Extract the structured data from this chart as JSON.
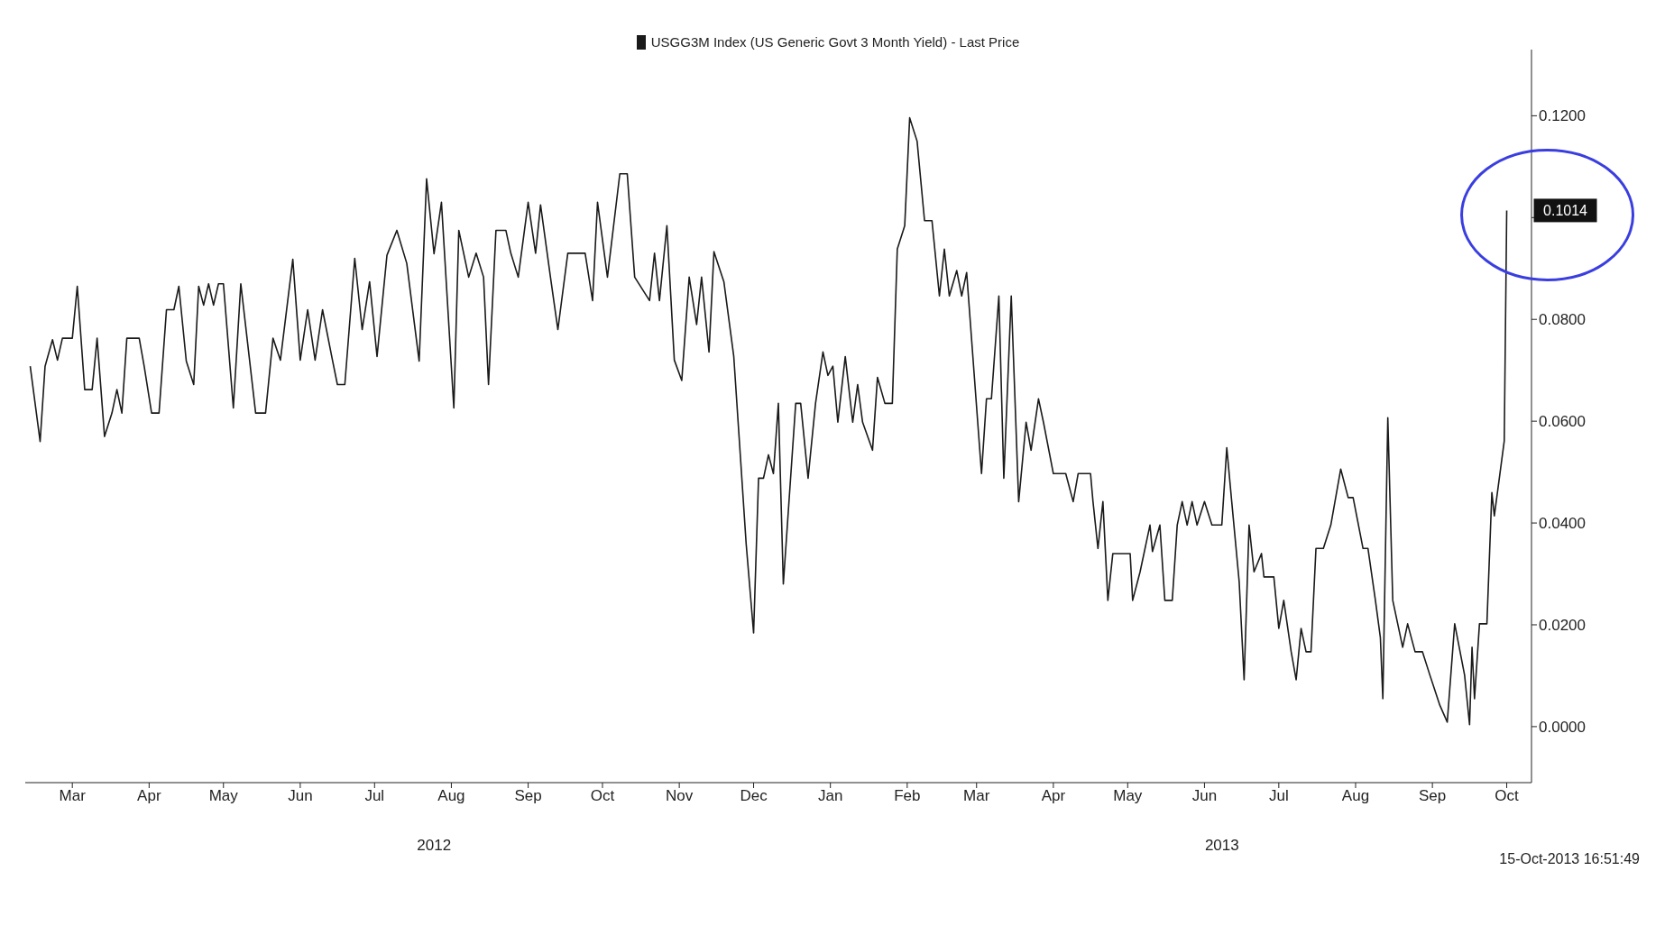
{
  "chart_data": {
    "type": "line",
    "legend": "top",
    "grid": false,
    "marker": "none",
    "line_style": "solid",
    "series": [
      {
        "name": "USGG3M Index (US Generic Govt 3 Month Yield) - Last Price",
        "color": "#1a1a1a",
        "x": [
          "2012-02-27",
          "2012-03-02",
          "2012-03-04",
          "2012-03-07",
          "2012-03-09",
          "2012-03-11",
          "2012-03-15",
          "2012-03-17",
          "2012-03-20",
          "2012-03-23",
          "2012-03-25",
          "2012-03-28",
          "2012-03-31",
          "2012-04-02",
          "2012-04-04",
          "2012-04-06",
          "2012-04-11",
          "2012-04-13",
          "2012-04-16",
          "2012-04-19",
          "2012-04-22",
          "2012-04-25",
          "2012-04-27",
          "2012-04-30",
          "2012-05-03",
          "2012-05-05",
          "2012-05-07",
          "2012-05-09",
          "2012-05-11",
          "2012-05-13",
          "2012-05-15",
          "2012-05-19",
          "2012-05-22",
          "2012-05-28",
          "2012-06-01",
          "2012-06-04",
          "2012-06-07",
          "2012-06-12",
          "2012-06-15",
          "2012-06-18",
          "2012-06-21",
          "2012-06-24",
          "2012-06-28",
          "2012-06-30",
          "2012-07-03",
          "2012-07-07",
          "2012-07-10",
          "2012-07-13",
          "2012-07-16",
          "2012-07-20",
          "2012-07-24",
          "2012-07-28",
          "2012-08-02",
          "2012-08-05",
          "2012-08-08",
          "2012-08-11",
          "2012-08-16",
          "2012-08-18",
          "2012-08-22",
          "2012-08-25",
          "2012-08-28",
          "2012-08-30",
          "2012-09-02",
          "2012-09-06",
          "2012-09-08",
          "2012-09-11",
          "2012-09-15",
          "2012-09-18",
          "2012-09-20",
          "2012-09-24",
          "2012-09-27",
          "2012-10-01",
          "2012-10-08",
          "2012-10-11",
          "2012-10-13",
          "2012-10-17",
          "2012-10-22",
          "2012-10-25",
          "2012-10-28",
          "2012-11-03",
          "2012-11-05",
          "2012-11-07",
          "2012-11-10",
          "2012-11-13",
          "2012-11-16",
          "2012-11-19",
          "2012-11-22",
          "2012-11-24",
          "2012-11-27",
          "2012-11-29",
          "2012-12-03",
          "2012-12-07",
          "2012-12-09",
          "2012-12-12",
          "2012-12-15",
          "2012-12-17",
          "2012-12-19",
          "2012-12-21",
          "2012-12-23",
          "2012-12-25",
          "2012-12-27",
          "2013-01-01",
          "2013-01-03",
          "2013-01-06",
          "2013-01-09",
          "2013-01-12",
          "2013-01-14",
          "2013-01-16",
          "2013-01-18",
          "2013-01-21",
          "2013-01-24",
          "2013-01-26",
          "2013-01-28",
          "2013-02-01",
          "2013-02-03",
          "2013-02-06",
          "2013-02-09",
          "2013-02-11",
          "2013-02-14",
          "2013-02-16",
          "2013-02-19",
          "2013-02-22",
          "2013-02-25",
          "2013-02-28",
          "2013-03-02",
          "2013-03-04",
          "2013-03-07",
          "2013-03-09",
          "2013-03-11",
          "2013-03-17",
          "2013-03-19",
          "2013-03-21",
          "2013-03-24",
          "2013-03-26",
          "2013-03-29",
          "2013-04-01",
          "2013-04-04",
          "2013-04-06",
          "2013-04-09",
          "2013-04-11",
          "2013-04-15",
          "2013-04-20",
          "2013-04-23",
          "2013-04-25",
          "2013-04-30",
          "2013-05-01",
          "2013-05-03",
          "2013-05-05",
          "2013-05-07",
          "2013-05-09",
          "2013-05-16",
          "2013-05-17",
          "2013-05-20",
          "2013-05-24",
          "2013-05-25",
          "2013-05-28",
          "2013-05-30",
          "2013-06-02",
          "2013-06-04",
          "2013-06-06",
          "2013-06-08",
          "2013-06-10",
          "2013-06-12",
          "2013-06-15",
          "2013-06-18",
          "2013-06-22",
          "2013-06-24",
          "2013-06-26",
          "2013-06-29",
          "2013-07-01",
          "2013-07-03",
          "2013-07-05",
          "2013-07-08",
          "2013-07-09",
          "2013-07-13",
          "2013-07-15",
          "2013-07-17",
          "2013-07-20",
          "2013-07-22",
          "2013-07-24",
          "2013-07-26",
          "2013-07-28",
          "2013-07-30",
          "2013-08-02",
          "2013-08-05",
          "2013-08-09",
          "2013-08-12",
          "2013-08-14",
          "2013-08-18",
          "2013-08-20",
          "2013-08-23",
          "2013-08-25",
          "2013-08-26",
          "2013-08-28",
          "2013-08-30",
          "2013-09-03",
          "2013-09-05",
          "2013-09-08",
          "2013-09-11",
          "2013-09-14",
          "2013-09-18",
          "2013-09-21",
          "2013-09-24",
          "2013-09-28",
          "2013-09-30",
          "2013-10-01",
          "2013-10-02",
          "2013-10-04",
          "2013-10-07",
          "2013-10-09",
          "2013-10-10",
          "2013-10-14",
          "2013-10-15"
        ],
        "values": [
          0.0708,
          0.056,
          0.0708,
          0.076,
          0.072,
          0.0763,
          0.0763,
          0.0865,
          0.0662,
          0.0662,
          0.0763,
          0.057,
          0.0616,
          0.0662,
          0.0616,
          0.0763,
          0.0763,
          0.0708,
          0.0616,
          0.0616,
          0.0819,
          0.0819,
          0.0865,
          0.0718,
          0.0672,
          0.0865,
          0.0828,
          0.087,
          0.0828,
          0.087,
          0.087,
          0.0626,
          0.087,
          0.0616,
          0.0616,
          0.0763,
          0.072,
          0.0918,
          0.072,
          0.0819,
          0.072,
          0.0819,
          0.072,
          0.0672,
          0.0672,
          0.092,
          0.078,
          0.0874,
          0.0727,
          0.0926,
          0.0975,
          0.091,
          0.0718,
          0.1076,
          0.0929,
          0.103,
          0.0626,
          0.0975,
          0.0883,
          0.093,
          0.0883,
          0.0672,
          0.0975,
          0.0975,
          0.093,
          0.0883,
          0.103,
          0.093,
          0.1025,
          0.0883,
          0.078,
          0.093,
          0.093,
          0.0837,
          0.103,
          0.0883,
          0.1086,
          0.1086,
          0.0883,
          0.0837,
          0.093,
          0.0837,
          0.0984,
          0.072,
          0.068,
          0.0883,
          0.079,
          0.0883,
          0.0736,
          0.0933,
          0.0874,
          0.0727,
          0.058,
          0.0359,
          0.0184,
          0.0488,
          0.0488,
          0.0534,
          0.0497,
          0.0635,
          0.028,
          0.0635,
          0.0635,
          0.0488,
          0.0635,
          0.0736,
          0.069,
          0.0708,
          0.0598,
          0.0727,
          0.0598,
          0.0672,
          0.0598,
          0.0543,
          0.0686,
          0.0635,
          0.0635,
          0.0938,
          0.0984,
          0.1196,
          0.115,
          0.0994,
          0.0994,
          0.0846,
          0.0938,
          0.0846,
          0.0896,
          0.0846,
          0.0892,
          0.0497,
          0.0644,
          0.0644,
          0.0846,
          0.0488,
          0.0846,
          0.0442,
          0.0598,
          0.0543,
          0.0644,
          0.0598,
          0.0497,
          0.0497,
          0.0442,
          0.0497,
          0.0497,
          0.0442,
          0.035,
          0.0442,
          0.0248,
          0.034,
          0.034,
          0.0248,
          0.0304,
          0.0396,
          0.0344,
          0.0396,
          0.0248,
          0.0248,
          0.0396,
          0.0442,
          0.0396,
          0.0442,
          0.0396,
          0.0442,
          0.0396,
          0.0396,
          0.0548,
          0.0442,
          0.0285,
          0.0092,
          0.0396,
          0.0304,
          0.034,
          0.0294,
          0.0294,
          0.0193,
          0.0248,
          0.0147,
          0.0092,
          0.0193,
          0.0147,
          0.0147,
          0.035,
          0.035,
          0.0396,
          0.0506,
          0.045,
          0.045,
          0.035,
          0.035,
          0.0248,
          0.0175,
          0.0055,
          0.0607,
          0.0248,
          0.0156,
          0.0202,
          0.0147,
          0.0147,
          0.0101,
          0.0042,
          0.0009,
          0.0202,
          0.0101,
          0.0004,
          0.0156,
          0.0055,
          0.0202,
          0.0202,
          0.046,
          0.0414,
          0.0561,
          0.1014
        ]
      }
    ],
    "xlim": [
      "2012-02-25",
      "2013-10-25"
    ],
    "xticks": [
      {
        "value": "2012-03-15",
        "label": "Mar"
      },
      {
        "value": "2012-04-15",
        "label": "Apr"
      },
      {
        "value": "2012-05-15",
        "label": "May"
      },
      {
        "value": "2012-06-15",
        "label": "Jun"
      },
      {
        "value": "2012-07-15",
        "label": "Jul"
      },
      {
        "value": "2012-08-15",
        "label": "Aug"
      },
      {
        "value": "2012-09-15",
        "label": "Sep"
      },
      {
        "value": "2012-10-15",
        "label": "Oct"
      },
      {
        "value": "2012-11-15",
        "label": "Nov"
      },
      {
        "value": "2012-12-15",
        "label": "Dec"
      },
      {
        "value": "2013-01-15",
        "label": "Jan"
      },
      {
        "value": "2013-02-15",
        "label": "Feb"
      },
      {
        "value": "2013-03-15",
        "label": "Mar"
      },
      {
        "value": "2013-04-15",
        "label": "Apr"
      },
      {
        "value": "2013-05-15",
        "label": "May"
      },
      {
        "value": "2013-06-15",
        "label": "Jun"
      },
      {
        "value": "2013-07-15",
        "label": "Jul"
      },
      {
        "value": "2013-08-15",
        "label": "Aug"
      },
      {
        "value": "2013-09-15",
        "label": "Sep"
      },
      {
        "value": "2013-10-15",
        "label": "Oct"
      }
    ],
    "ylim": [
      -0.011,
      0.133
    ],
    "yticks": [
      {
        "value": 0,
        "label": "0.0000"
      },
      {
        "value": 0.02,
        "label": "0.0200"
      },
      {
        "value": 0.04,
        "label": "0.0400"
      },
      {
        "value": 0.06,
        "label": "0.0600"
      },
      {
        "value": 0.08,
        "label": "0.0800"
      },
      {
        "value": 0.1,
        "label": null
      },
      {
        "value": 0.12,
        "label": "0.1200"
      }
    ],
    "annotations": [
      {
        "text": "0.1014",
        "x": "2013-10-15",
        "y": 0.1014
      },
      "2012",
      "2013",
      "15-Oct-2013 16:51:49"
    ]
  }
}
